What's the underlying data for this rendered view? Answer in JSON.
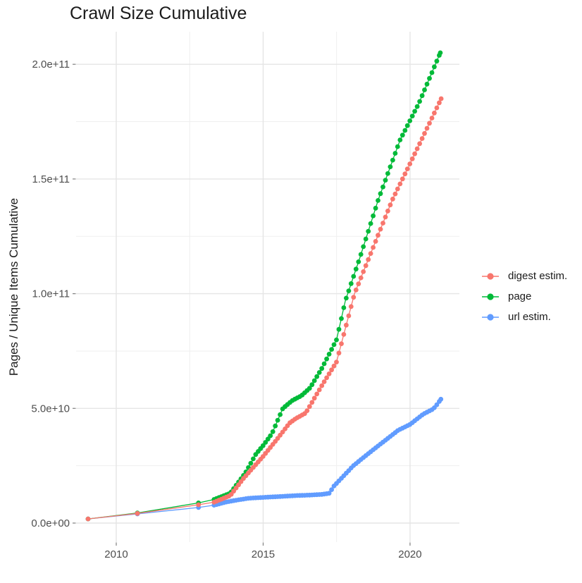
{
  "title": "Crawl Size Cumulative",
  "chart_data": {
    "type": "scatter",
    "title": "Crawl Size Cumulative",
    "xlabel": "",
    "ylabel": "Pages / Unique Items Cumulative",
    "x_ticks": [
      2010,
      2015,
      2020
    ],
    "x_minor_ticks": [
      2012.5,
      2017.5
    ],
    "y_ticks": [
      0,
      50000000000.0,
      100000000000.0,
      150000000000.0,
      200000000000.0
    ],
    "y_tick_labels": [
      "0.0e+00",
      "5.0e+10",
      "1.0e+11",
      "1.5e+11",
      "2.0e+11"
    ],
    "x_domain": [
      2008.633,
      2021.68
    ],
    "y_domain": [
      -8300000000.0,
      214200000000.0
    ],
    "grid": "major+minor",
    "legend_position": "right",
    "point_cadence_years": 0.0833,
    "dense_from_year": 2013.33,
    "series": [
      {
        "name": "digest estim.",
        "color": "#F8766D",
        "points": [
          [
            2009.04,
            1800000000.0
          ],
          [
            2010.72,
            4200000000.0
          ],
          [
            2012.8,
            8000000000.0
          ],
          [
            2013.33,
            9100000000.0
          ],
          [
            2013.88,
            12000000000.0
          ],
          [
            2014.32,
            19300000000.0
          ],
          [
            2015.0,
            29100000000.0
          ],
          [
            2015.5,
            37000000000.0
          ],
          [
            2015.9,
            43600000000.0
          ],
          [
            2016.1,
            45500000000.0
          ],
          [
            2016.45,
            48000000000.0
          ],
          [
            2017.0,
            60000000000.0
          ],
          [
            2017.5,
            70300000000.0
          ],
          [
            2018.11,
            100000000000.0
          ],
          [
            2019.4,
            141000000000.0
          ],
          [
            2020.2,
            162000000000.0
          ],
          [
            2021.06,
            185000000000.0
          ]
        ]
      },
      {
        "name": "page",
        "color": "#00BA38",
        "points": [
          [
            2009.04,
            1800000000.0
          ],
          [
            2010.72,
            4400000000.0
          ],
          [
            2012.8,
            8800000000.0
          ],
          [
            2013.33,
            10300000000.0
          ],
          [
            2013.88,
            13000000000.0
          ],
          [
            2014.4,
            22000000000.0
          ],
          [
            2014.75,
            30000000000.0
          ],
          [
            2015.0,
            33800000000.0
          ],
          [
            2015.3,
            39000000000.0
          ],
          [
            2015.67,
            50000000000.0
          ],
          [
            2016.0,
            53500000000.0
          ],
          [
            2016.3,
            55500000000.0
          ],
          [
            2016.6,
            59000000000.0
          ],
          [
            2017.0,
            67500000000.0
          ],
          [
            2017.5,
            80000000000.0
          ],
          [
            2017.8,
            97000000000.0
          ],
          [
            2018.3,
            116000000000.0
          ],
          [
            2018.92,
            141000000000.0
          ],
          [
            2019.66,
            167000000000.0
          ],
          [
            2020.3,
            183000000000.0
          ],
          [
            2021.03,
            205000000000.0
          ]
        ]
      },
      {
        "name": "url estim.",
        "color": "#619CFF",
        "points": [
          [
            2009.04,
            1800000000.0
          ],
          [
            2010.72,
            4000000000.0
          ],
          [
            2012.8,
            6800000000.0
          ],
          [
            2013.33,
            7800000000.0
          ],
          [
            2013.75,
            9200000000.0
          ],
          [
            2014.1,
            10000000000.0
          ],
          [
            2014.5,
            10800000000.0
          ],
          [
            2015.0,
            11200000000.0
          ],
          [
            2015.6,
            11600000000.0
          ],
          [
            2016.16,
            12000000000.0
          ],
          [
            2016.6,
            12200000000.0
          ],
          [
            2017.0,
            12500000000.0
          ],
          [
            2017.25,
            13000000000.0
          ],
          [
            2017.4,
            16000000000.0
          ],
          [
            2018.07,
            25000000000.0
          ],
          [
            2018.6,
            30500000000.0
          ],
          [
            2019.1,
            35500000000.0
          ],
          [
            2019.6,
            40500000000.0
          ],
          [
            2020.0,
            43000000000.0
          ],
          [
            2020.45,
            47500000000.0
          ],
          [
            2020.75,
            49500000000.0
          ],
          [
            2020.85,
            50500000000.0
          ],
          [
            2021.05,
            54000000000.0
          ]
        ]
      }
    ],
    "colors": {
      "grid_major": "#E5E5E5",
      "grid_minor": "#EFEFEF",
      "tick_text": "#4d4d4d",
      "tick_mark": "#808080"
    }
  }
}
